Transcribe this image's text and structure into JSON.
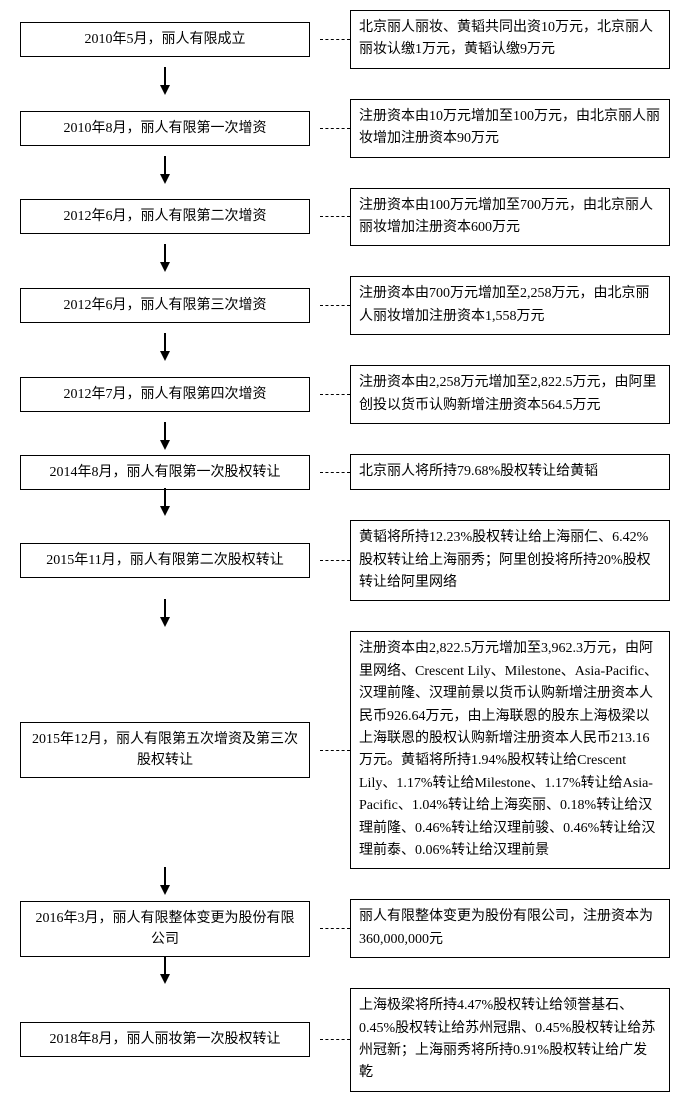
{
  "layout": {
    "leftBoxWidth": 290,
    "rightBoxWidth": 320,
    "connectorWidth": 30,
    "arrowHeight": 30,
    "borderColor": "#000000",
    "backgroundColor": "#ffffff",
    "textColor": "#000000",
    "fontFamily": "SimSun",
    "fontSize": 14,
    "lineHeight": 1.6,
    "dashStyle": "dashed"
  },
  "timeline": [
    {
      "event": "2010年5月，丽人有限成立",
      "desc": "北京丽人丽妆、黄韬共同出资10万元，北京丽人丽妆认缴1万元，黄韬认缴9万元"
    },
    {
      "event": "2010年8月，丽人有限第一次增资",
      "desc": "注册资本由10万元增加至100万元，由北京丽人丽妆增加注册资本90万元"
    },
    {
      "event": "2012年6月，丽人有限第二次增资",
      "desc": "注册资本由100万元增加至700万元，由北京丽人丽妆增加注册资本600万元"
    },
    {
      "event": "2012年6月，丽人有限第三次增资",
      "desc": "注册资本由700万元增加至2,258万元，由北京丽人丽妆增加注册资本1,558万元"
    },
    {
      "event": "2012年7月，丽人有限第四次增资",
      "desc": "注册资本由2,258万元增加至2,822.5万元，由阿里创投以货币认购新增注册资本564.5万元"
    },
    {
      "event": "2014年8月，丽人有限第一次股权转让",
      "desc": "北京丽人将所持79.68%股权转让给黄韬"
    },
    {
      "event": "2015年11月，丽人有限第二次股权转让",
      "desc": "黄韬将所持12.23%股权转让给上海丽仁、6.42%股权转让给上海丽秀；阿里创投将所持20%股权转让给阿里网络"
    },
    {
      "event": "2015年12月，丽人有限第五次增资及第三次股权转让",
      "desc": "注册资本由2,822.5万元增加至3,962.3万元，由阿里网络、Crescent Lily、Milestone、Asia-Pacific、汉理前隆、汉理前景以货币认购新增注册资本人民币926.64万元，由上海联恩的股东上海极梁以上海联恩的股权认购新增注册资本人民币213.16万元。黄韬将所持1.94%股权转让给Crescent Lily、1.17%转让给Milestone、1.17%转让给Asia-Pacific、1.04%转让给上海奕丽、0.18%转让给汉理前隆、0.46%转让给汉理前骏、0.46%转让给汉理前泰、0.06%转让给汉理前景"
    },
    {
      "event": "2016年3月，丽人有限整体变更为股份有限公司",
      "desc": "丽人有限整体变更为股份有限公司，注册资本为360,000,000元"
    },
    {
      "event": "2018年8月，丽人丽妆第一次股权转让",
      "desc": "上海极梁将所持4.47%股权转让给领誉基石、0.45%股权转让给苏州冠鼎、0.45%股权转让给苏州冠新；上海丽秀将所持0.91%股权转让给广发乾"
    }
  ]
}
